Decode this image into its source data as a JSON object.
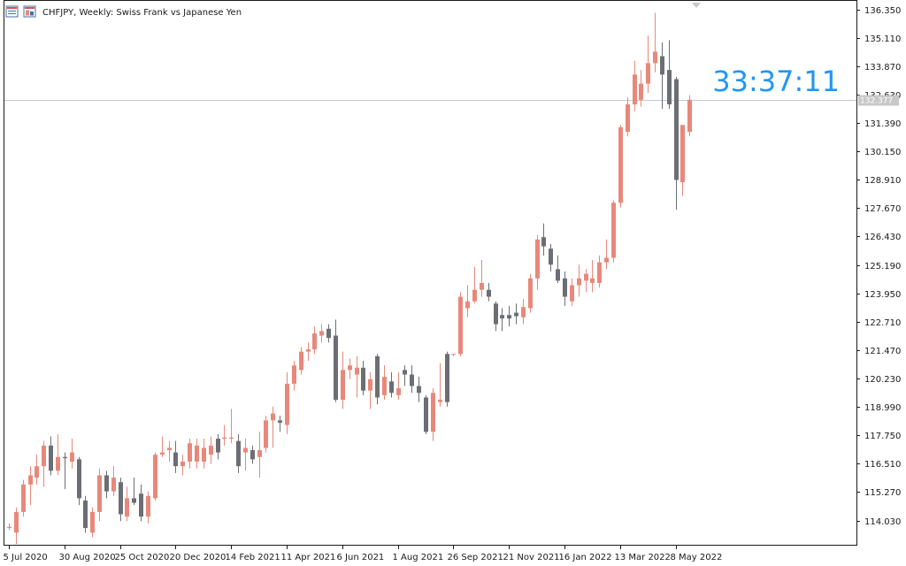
{
  "header": {
    "title": "CHFJPY, Weekly:  Swiss Frank vs Japanese Yen",
    "icons": [
      "chart-list-icon",
      "chart-grid-icon"
    ]
  },
  "overlay": {
    "countdown": "33:37:11"
  },
  "colors": {
    "bull": "#e8887a",
    "bear": "#6b6e74",
    "axis": "#1a1a1a",
    "countdown": "#2196f3",
    "price_line": "#c8c8c8",
    "price_tag_bg": "#c8c8c8"
  },
  "chart_data": {
    "type": "candlestick",
    "title": "CHFJPY, Weekly:  Swiss Frank vs Japanese Yen",
    "ylim": [
      113.0,
      136.6
    ],
    "y_ticks": [
      136.35,
      135.11,
      133.87,
      132.63,
      131.39,
      130.15,
      128.91,
      127.67,
      126.43,
      125.19,
      123.95,
      122.71,
      121.47,
      120.23,
      118.99,
      117.75,
      116.51,
      115.27,
      114.03
    ],
    "y_tick_labels": [
      "136.350",
      "135.110",
      "133.870",
      "132.630",
      "131.390",
      "130.150",
      "128.910",
      "127.670",
      "126.430",
      "125.190",
      "123.950",
      "122.710",
      "121.470",
      "120.230",
      "118.990",
      "117.750",
      "116.510",
      "115.270",
      "114.030"
    ],
    "x_labels": [
      "5 Jul 2020",
      "30 Aug 2020",
      "25 Oct 2020",
      "20 Dec 2020",
      "14 Feb 2021",
      "11 Apr 2021",
      "6 Jun 2021",
      "1 Aug 2021",
      "26 Sep 2021",
      "21 Nov 2021",
      "16 Jan 2022",
      "13 Mar 2022",
      "8 May 2022"
    ],
    "x_label_index": [
      0,
      8,
      16,
      24,
      32,
      40,
      48,
      56,
      64,
      72,
      80,
      88,
      96
    ],
    "last_price": 132.377,
    "last_price_label": "132.377",
    "candles": [
      {
        "o": 113.7,
        "h": 113.9,
        "l": 113.6,
        "c": 113.75
      },
      {
        "o": 113.5,
        "h": 114.6,
        "l": 113.0,
        "c": 114.4
      },
      {
        "o": 114.4,
        "h": 115.8,
        "l": 114.2,
        "c": 115.6
      },
      {
        "o": 115.6,
        "h": 116.4,
        "l": 114.7,
        "c": 116.0
      },
      {
        "o": 115.9,
        "h": 116.9,
        "l": 115.6,
        "c": 116.4
      },
      {
        "o": 116.4,
        "h": 117.5,
        "l": 115.5,
        "c": 117.3
      },
      {
        "o": 117.3,
        "h": 117.7,
        "l": 116.0,
        "c": 116.2
      },
      {
        "o": 116.2,
        "h": 117.8,
        "l": 116.0,
        "c": 116.8
      },
      {
        "o": 116.8,
        "h": 117.0,
        "l": 115.4,
        "c": 116.75
      },
      {
        "o": 116.6,
        "h": 117.6,
        "l": 116.3,
        "c": 117.0
      },
      {
        "o": 116.7,
        "h": 116.8,
        "l": 114.7,
        "c": 115.0
      },
      {
        "o": 114.9,
        "h": 115.1,
        "l": 113.5,
        "c": 113.7
      },
      {
        "o": 113.5,
        "h": 114.6,
        "l": 113.3,
        "c": 114.4
      },
      {
        "o": 114.4,
        "h": 116.3,
        "l": 114.0,
        "c": 116.0
      },
      {
        "o": 116.0,
        "h": 116.2,
        "l": 115.0,
        "c": 115.3
      },
      {
        "o": 115.3,
        "h": 116.4,
        "l": 115.1,
        "c": 115.9
      },
      {
        "o": 115.7,
        "h": 115.9,
        "l": 114.0,
        "c": 114.3
      },
      {
        "o": 114.2,
        "h": 115.5,
        "l": 114.0,
        "c": 115.0
      },
      {
        "o": 115.0,
        "h": 115.9,
        "l": 114.7,
        "c": 114.8
      },
      {
        "o": 115.2,
        "h": 115.6,
        "l": 114.0,
        "c": 114.2
      },
      {
        "o": 114.2,
        "h": 115.3,
        "l": 113.9,
        "c": 115.1
      },
      {
        "o": 115.0,
        "h": 117.0,
        "l": 114.9,
        "c": 116.9
      },
      {
        "o": 116.9,
        "h": 117.7,
        "l": 116.8,
        "c": 117.0
      },
      {
        "o": 117.1,
        "h": 117.5,
        "l": 116.6,
        "c": 117.2
      },
      {
        "o": 117.0,
        "h": 117.5,
        "l": 116.1,
        "c": 116.4
      },
      {
        "o": 116.4,
        "h": 116.9,
        "l": 116.0,
        "c": 116.6
      },
      {
        "o": 116.6,
        "h": 117.6,
        "l": 116.3,
        "c": 117.4
      },
      {
        "o": 116.6,
        "h": 117.6,
        "l": 116.3,
        "c": 117.3
      },
      {
        "o": 116.6,
        "h": 117.6,
        "l": 116.3,
        "c": 117.2
      },
      {
        "o": 116.9,
        "h": 117.7,
        "l": 116.5,
        "c": 117.3
      },
      {
        "o": 117.6,
        "h": 117.8,
        "l": 116.7,
        "c": 117.0
      },
      {
        "o": 117.6,
        "h": 118.2,
        "l": 117.3,
        "c": 117.65
      },
      {
        "o": 117.6,
        "h": 118.9,
        "l": 117.4,
        "c": 117.65
      },
      {
        "o": 117.5,
        "h": 117.8,
        "l": 116.1,
        "c": 116.4
      },
      {
        "o": 117.0,
        "h": 117.6,
        "l": 116.2,
        "c": 117.2
      },
      {
        "o": 117.1,
        "h": 117.3,
        "l": 116.5,
        "c": 116.7
      },
      {
        "o": 116.8,
        "h": 117.9,
        "l": 115.9,
        "c": 117.1
      },
      {
        "o": 117.2,
        "h": 118.6,
        "l": 117.0,
        "c": 118.4
      },
      {
        "o": 118.4,
        "h": 119.0,
        "l": 117.2,
        "c": 118.7
      },
      {
        "o": 118.4,
        "h": 118.6,
        "l": 117.9,
        "c": 118.3
      },
      {
        "o": 118.2,
        "h": 120.5,
        "l": 117.8,
        "c": 120.0
      },
      {
        "o": 120.0,
        "h": 121.0,
        "l": 119.7,
        "c": 120.8
      },
      {
        "o": 120.6,
        "h": 121.6,
        "l": 120.4,
        "c": 121.4
      },
      {
        "o": 121.4,
        "h": 121.8,
        "l": 121.0,
        "c": 121.5
      },
      {
        "o": 121.5,
        "h": 122.5,
        "l": 121.3,
        "c": 122.2
      },
      {
        "o": 122.1,
        "h": 122.6,
        "l": 121.8,
        "c": 122.3
      },
      {
        "o": 122.4,
        "h": 122.6,
        "l": 121.8,
        "c": 122.0
      },
      {
        "o": 122.1,
        "h": 122.8,
        "l": 119.2,
        "c": 119.3
      },
      {
        "o": 119.3,
        "h": 121.4,
        "l": 118.9,
        "c": 120.6
      },
      {
        "o": 120.6,
        "h": 121.1,
        "l": 120.2,
        "c": 120.8
      },
      {
        "o": 120.4,
        "h": 121.2,
        "l": 119.4,
        "c": 120.7
      },
      {
        "o": 120.7,
        "h": 121.0,
        "l": 119.5,
        "c": 119.7
      },
      {
        "o": 119.7,
        "h": 120.5,
        "l": 118.9,
        "c": 120.2
      },
      {
        "o": 121.2,
        "h": 121.3,
        "l": 119.1,
        "c": 119.4
      },
      {
        "o": 119.5,
        "h": 120.8,
        "l": 119.3,
        "c": 120.3
      },
      {
        "o": 120.1,
        "h": 120.5,
        "l": 119.4,
        "c": 119.6
      },
      {
        "o": 119.5,
        "h": 120.5,
        "l": 119.3,
        "c": 119.8
      },
      {
        "o": 120.6,
        "h": 120.8,
        "l": 119.9,
        "c": 120.4
      },
      {
        "o": 120.4,
        "h": 120.8,
        "l": 119.6,
        "c": 119.9
      },
      {
        "o": 119.9,
        "h": 120.3,
        "l": 119.2,
        "c": 119.6
      },
      {
        "o": 119.4,
        "h": 119.5,
        "l": 117.8,
        "c": 117.9
      },
      {
        "o": 117.9,
        "h": 119.8,
        "l": 117.5,
        "c": 119.6
      },
      {
        "o": 119.2,
        "h": 120.9,
        "l": 119.0,
        "c": 119.3
      },
      {
        "o": 121.3,
        "h": 121.4,
        "l": 119.0,
        "c": 119.2
      },
      {
        "o": 121.3,
        "h": 121.3,
        "l": 121.2,
        "c": 121.3
      },
      {
        "o": 121.3,
        "h": 124.0,
        "l": 121.2,
        "c": 123.8
      },
      {
        "o": 123.3,
        "h": 124.3,
        "l": 122.9,
        "c": 123.6
      },
      {
        "o": 123.6,
        "h": 125.1,
        "l": 123.5,
        "c": 124.1
      },
      {
        "o": 124.1,
        "h": 125.4,
        "l": 123.8,
        "c": 124.4
      },
      {
        "o": 124.1,
        "h": 124.4,
        "l": 123.6,
        "c": 123.8
      },
      {
        "o": 123.5,
        "h": 123.6,
        "l": 122.3,
        "c": 122.6
      },
      {
        "o": 123.0,
        "h": 123.3,
        "l": 122.3,
        "c": 122.85
      },
      {
        "o": 123.0,
        "h": 123.4,
        "l": 122.5,
        "c": 122.85
      },
      {
        "o": 123.1,
        "h": 123.5,
        "l": 122.6,
        "c": 122.95
      },
      {
        "o": 122.9,
        "h": 123.7,
        "l": 122.6,
        "c": 123.35
      },
      {
        "o": 123.3,
        "h": 124.8,
        "l": 123.1,
        "c": 124.6
      },
      {
        "o": 124.6,
        "h": 126.5,
        "l": 124.1,
        "c": 126.3
      },
      {
        "o": 126.4,
        "h": 127.0,
        "l": 125.6,
        "c": 126.0
      },
      {
        "o": 125.9,
        "h": 126.1,
        "l": 124.9,
        "c": 125.2
      },
      {
        "o": 125.0,
        "h": 125.6,
        "l": 124.4,
        "c": 124.5
      },
      {
        "o": 124.6,
        "h": 124.9,
        "l": 123.4,
        "c": 123.8
      },
      {
        "o": 123.6,
        "h": 124.6,
        "l": 123.4,
        "c": 124.3
      },
      {
        "o": 124.3,
        "h": 125.2,
        "l": 123.8,
        "c": 124.6
      },
      {
        "o": 124.5,
        "h": 125.0,
        "l": 124.0,
        "c": 124.8
      },
      {
        "o": 124.4,
        "h": 125.4,
        "l": 124.0,
        "c": 124.6
      },
      {
        "o": 124.4,
        "h": 125.6,
        "l": 124.2,
        "c": 125.3
      },
      {
        "o": 125.3,
        "h": 126.3,
        "l": 125.0,
        "c": 125.5
      },
      {
        "o": 125.5,
        "h": 128.0,
        "l": 125.3,
        "c": 127.9
      },
      {
        "o": 127.9,
        "h": 131.3,
        "l": 127.7,
        "c": 131.2
      },
      {
        "o": 131.0,
        "h": 132.5,
        "l": 130.8,
        "c": 132.2
      },
      {
        "o": 132.2,
        "h": 134.1,
        "l": 131.9,
        "c": 133.5
      },
      {
        "o": 132.4,
        "h": 133.7,
        "l": 132.1,
        "c": 133.1
      },
      {
        "o": 133.1,
        "h": 135.2,
        "l": 132.7,
        "c": 134.0
      },
      {
        "o": 134.0,
        "h": 136.2,
        "l": 133.6,
        "c": 134.5
      },
      {
        "o": 134.3,
        "h": 134.9,
        "l": 132.0,
        "c": 133.5
      },
      {
        "o": 133.7,
        "h": 135.0,
        "l": 132.0,
        "c": 132.2
      },
      {
        "o": 133.3,
        "h": 133.4,
        "l": 127.6,
        "c": 128.9
      },
      {
        "o": 128.8,
        "h": 131.2,
        "l": 128.2,
        "c": 131.3
      },
      {
        "o": 131.0,
        "h": 132.6,
        "l": 130.8,
        "c": 132.4
      }
    ]
  }
}
